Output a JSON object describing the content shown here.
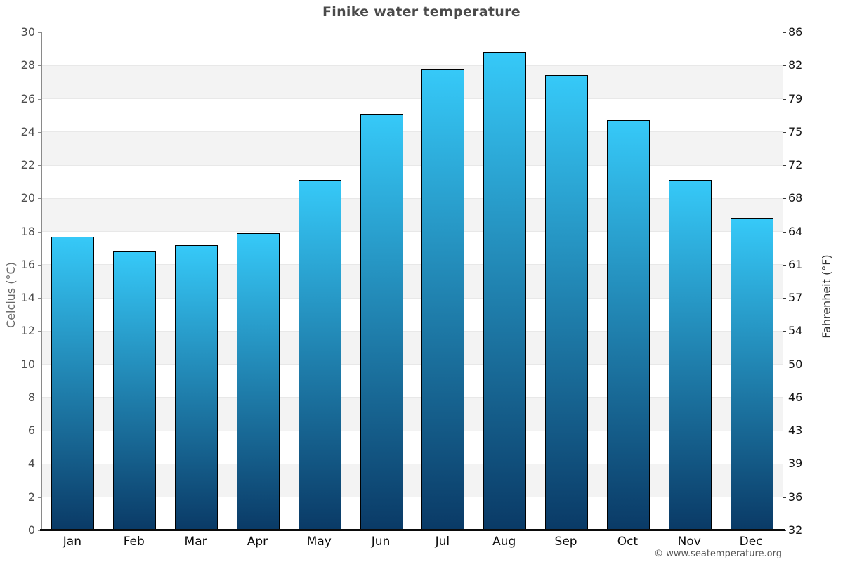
{
  "title": "Finike water temperature",
  "copyright": "© www.seatemperature.org",
  "chart_data": {
    "type": "bar",
    "title": "Finike water temperature",
    "categories": [
      "Jan",
      "Feb",
      "Mar",
      "Apr",
      "May",
      "Jun",
      "Jul",
      "Aug",
      "Sep",
      "Oct",
      "Nov",
      "Dec"
    ],
    "values": [
      17.7,
      16.8,
      17.2,
      17.9,
      21.1,
      25.1,
      27.8,
      28.8,
      27.4,
      24.7,
      21.1,
      18.8
    ],
    "series_name": "Water temperature (°C)",
    "xlabel": "",
    "ylabel_left": "Celcius (°C)",
    "ylabel_right": "Fahrenheit (°F)",
    "ylim": [
      0,
      30
    ],
    "ytick_step": 2,
    "yticks_left": [
      30,
      28,
      26,
      24,
      22,
      20,
      18,
      16,
      14,
      12,
      10,
      8,
      6,
      4,
      2,
      0
    ],
    "yticks_right": [
      86,
      82,
      79,
      75,
      72,
      68,
      64,
      61,
      57,
      54,
      50,
      46,
      43,
      39,
      36,
      32
    ],
    "grid": "striped-horizontal-bands",
    "legend": "none",
    "colors": {
      "bar_gradient_top": "#36c9f8",
      "bar_gradient_bottom": "#0a3a66",
      "bar_border": "#000000",
      "stripe_gray": "#f3f3f3",
      "stripe_white": "#ffffff",
      "gridline": "#e8e8e8",
      "title_text": "#4a4a4a",
      "tick_text_left": "#4d4d4d",
      "tick_text_right": "#141414",
      "axis_title_left": "#666666",
      "axis_title_right": "#333333",
      "baseline": "#0b0b0b",
      "copyright_text": "#555555"
    }
  }
}
